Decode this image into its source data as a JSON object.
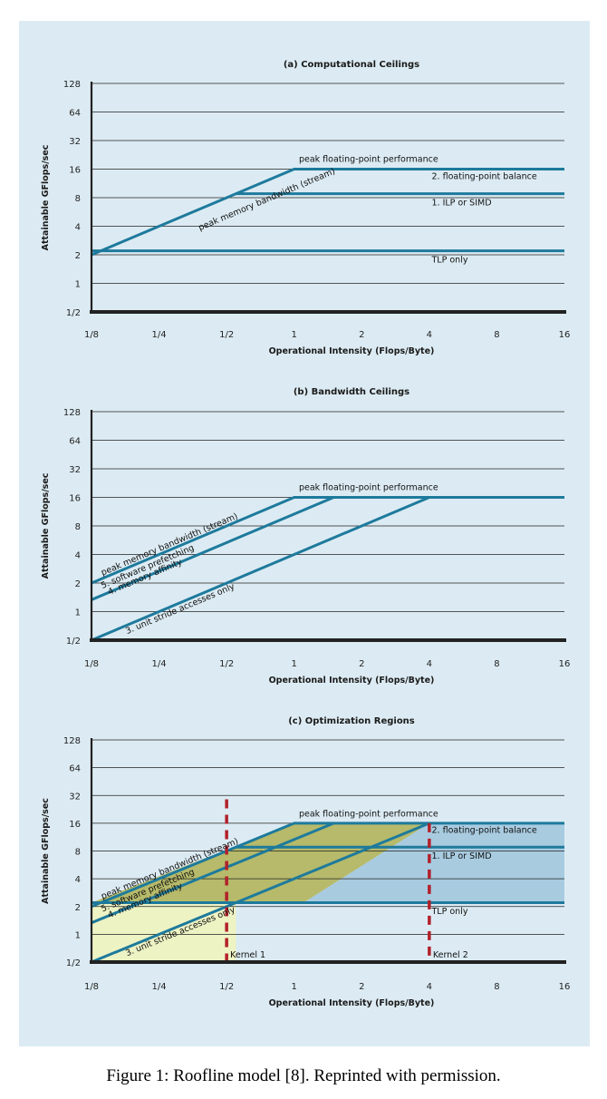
{
  "caption": "Figure 1: Roofline model [8]. Reprinted with permission.",
  "colors": {
    "panel_bg": "#dcebf3",
    "line": "#1e7a9c",
    "grid": "#222222",
    "axis": "#222222",
    "kernel": "#b2202a",
    "region_yellow": "#eef3c4",
    "region_olive": "#b6ba6a",
    "region_blue": "#a8cbe0"
  },
  "chart_data": [
    {
      "type": "line",
      "scale": "log2",
      "title": "(a) Computational Ceilings",
      "xlabel": "Operational Intensity (Flops/Byte)",
      "ylabel": "Attainable GFlops/sec",
      "xlim": [
        0.125,
        16
      ],
      "ylim": [
        0.5,
        128
      ],
      "xticks": [
        0.125,
        0.25,
        0.5,
        1,
        2,
        4,
        8,
        16
      ],
      "xtick_labels": [
        "1/8",
        "1/4",
        "1/2",
        "1",
        "2",
        "4",
        "8",
        "16"
      ],
      "yticks": [
        0.5,
        1,
        2,
        4,
        8,
        16,
        32,
        64,
        128
      ],
      "ytick_labels": [
        "1/2",
        "1",
        "2",
        "4",
        "8",
        "16",
        "32",
        "64",
        "128"
      ],
      "series": [
        {
          "name": "peak memory bandwidth (stream) + peak floating-point performance",
          "x": [
            0.125,
            1,
            16
          ],
          "y": [
            2,
            16,
            16
          ]
        },
        {
          "name": "1. ILP or SIMD",
          "x": [
            0.55,
            16
          ],
          "y": [
            8.8,
            8.8
          ]
        },
        {
          "name": "TLP only",
          "x": [
            0.125,
            16
          ],
          "y": [
            2.2,
            2.2
          ]
        }
      ],
      "annotations": [
        {
          "text": "peak memory bandwidth (stream)",
          "x": 0.38,
          "y": 3.6,
          "angle": "slope"
        },
        {
          "text": "peak floating-point performance",
          "x": 1.05,
          "y": 19
        },
        {
          "text": "2. floating-point balance",
          "x": 4.1,
          "y": 12.6
        },
        {
          "text": "1. ILP or SIMD",
          "x": 4.1,
          "y": 6.6
        },
        {
          "text": "TLP only",
          "x": 4.1,
          "y": 1.66
        }
      ]
    },
    {
      "type": "line",
      "scale": "log2",
      "title": "(b) Bandwidth Ceilings",
      "xlabel": "Operational Intensity (Flops/Byte)",
      "ylabel": "Attainable GFlops/sec",
      "xlim": [
        0.125,
        16
      ],
      "ylim": [
        0.5,
        128
      ],
      "xticks": [
        0.125,
        0.25,
        0.5,
        1,
        2,
        4,
        8,
        16
      ],
      "xtick_labels": [
        "1/8",
        "1/4",
        "1/2",
        "1",
        "2",
        "4",
        "8",
        "16"
      ],
      "yticks": [
        0.5,
        1,
        2,
        4,
        8,
        16,
        32,
        64,
        128
      ],
      "ytick_labels": [
        "1/2",
        "1",
        "2",
        "4",
        "8",
        "16",
        "32",
        "64",
        "128"
      ],
      "series": [
        {
          "name": "peak memory bandwidth (stream)",
          "x": [
            0.125,
            1,
            16
          ],
          "y": [
            2,
            16,
            16
          ]
        },
        {
          "name": "5. software prefetching",
          "x": [
            0.125,
            1.5
          ],
          "y": [
            1.333,
            16
          ]
        },
        {
          "name": "3. unit stride accesses only",
          "x": [
            0.125,
            4
          ],
          "y": [
            0.5,
            16
          ]
        }
      ],
      "annotations": [
        {
          "text": "peak floating-point performance",
          "x": 1.05,
          "y": 19
        },
        {
          "text": "peak memory bandwidth (stream)",
          "x": 0.14,
          "y": 2.4,
          "angle": "slope"
        },
        {
          "text": "5. software prefetching",
          "x": 0.14,
          "y": 1.75,
          "angle": "slope"
        },
        {
          "text": "4. memory affinity",
          "x": 0.15,
          "y": 1.5,
          "angle": "slope"
        },
        {
          "text": "3. unit stride accesses only",
          "x": 0.18,
          "y": 0.58,
          "angle": "slope"
        }
      ]
    },
    {
      "type": "area",
      "scale": "log2",
      "title": "(c) Optimization Regions",
      "xlabel": "Operational Intensity (Flops/Byte)",
      "ylabel": "Attainable GFlops/sec",
      "xlim": [
        0.125,
        16
      ],
      "ylim": [
        0.5,
        128
      ],
      "xticks": [
        0.125,
        0.25,
        0.5,
        1,
        2,
        4,
        8,
        16
      ],
      "xtick_labels": [
        "1/8",
        "1/4",
        "1/2",
        "1",
        "2",
        "4",
        "8",
        "16"
      ],
      "yticks": [
        0.5,
        1,
        2,
        4,
        8,
        16,
        32,
        64,
        128
      ],
      "ytick_labels": [
        "1/2",
        "1",
        "2",
        "4",
        "8",
        "16",
        "32",
        "64",
        "128"
      ],
      "series": [
        {
          "name": "peak memory bandwidth (stream)",
          "x": [
            0.125,
            1,
            16
          ],
          "y": [
            2,
            16,
            16
          ]
        },
        {
          "name": "5. software prefetching",
          "x": [
            0.125,
            1.5
          ],
          "y": [
            1.333,
            16
          ]
        },
        {
          "name": "3. unit stride accesses only",
          "x": [
            0.125,
            4
          ],
          "y": [
            0.5,
            16
          ]
        },
        {
          "name": "1. ILP or SIMD",
          "x": [
            0.55,
            16
          ],
          "y": [
            8.8,
            8.8
          ]
        },
        {
          "name": "TLP only",
          "x": [
            0.125,
            16
          ],
          "y": [
            2.2,
            2.2
          ]
        }
      ],
      "regions": [
        {
          "name": "bandwidth-bound region",
          "fill": "region_yellow",
          "x": [
            0.125,
            0.125,
            0.55,
            0.55
          ],
          "y": [
            0.5,
            2.2,
            2.2,
            0.5
          ]
        },
        {
          "name": "overlap region",
          "fill": "region_olive",
          "x": [
            0.125,
            1,
            4,
            1.1
          ],
          "y": [
            2.2,
            16,
            16,
            2.2
          ]
        },
        {
          "name": "compute-bound region",
          "fill": "region_blue",
          "x": [
            1.1,
            4,
            16,
            16
          ],
          "y": [
            2.2,
            16,
            16,
            2.2
          ]
        }
      ],
      "kernels": [
        {
          "name": "Kernel 1",
          "x": 0.5
        },
        {
          "name": "Kernel 2",
          "x": 4
        }
      ],
      "annotations": [
        {
          "text": "peak floating-point performance",
          "x": 1.05,
          "y": 19
        },
        {
          "text": "2. floating-point balance",
          "x": 4.1,
          "y": 12.6
        },
        {
          "text": "1. ILP or SIMD",
          "x": 4.1,
          "y": 6.6
        },
        {
          "text": "TLP only",
          "x": 4.1,
          "y": 1.66
        },
        {
          "text": "peak memory bandwidth (stream)",
          "x": 0.14,
          "y": 2.4,
          "angle": "slope"
        },
        {
          "text": "5. software prefetching",
          "x": 0.14,
          "y": 1.75,
          "angle": "slope"
        },
        {
          "text": "4. memory affinity",
          "x": 0.15,
          "y": 1.5,
          "angle": "slope"
        },
        {
          "text": "3. unit stride accesses only",
          "x": 0.18,
          "y": 0.58,
          "angle": "slope"
        }
      ]
    }
  ]
}
